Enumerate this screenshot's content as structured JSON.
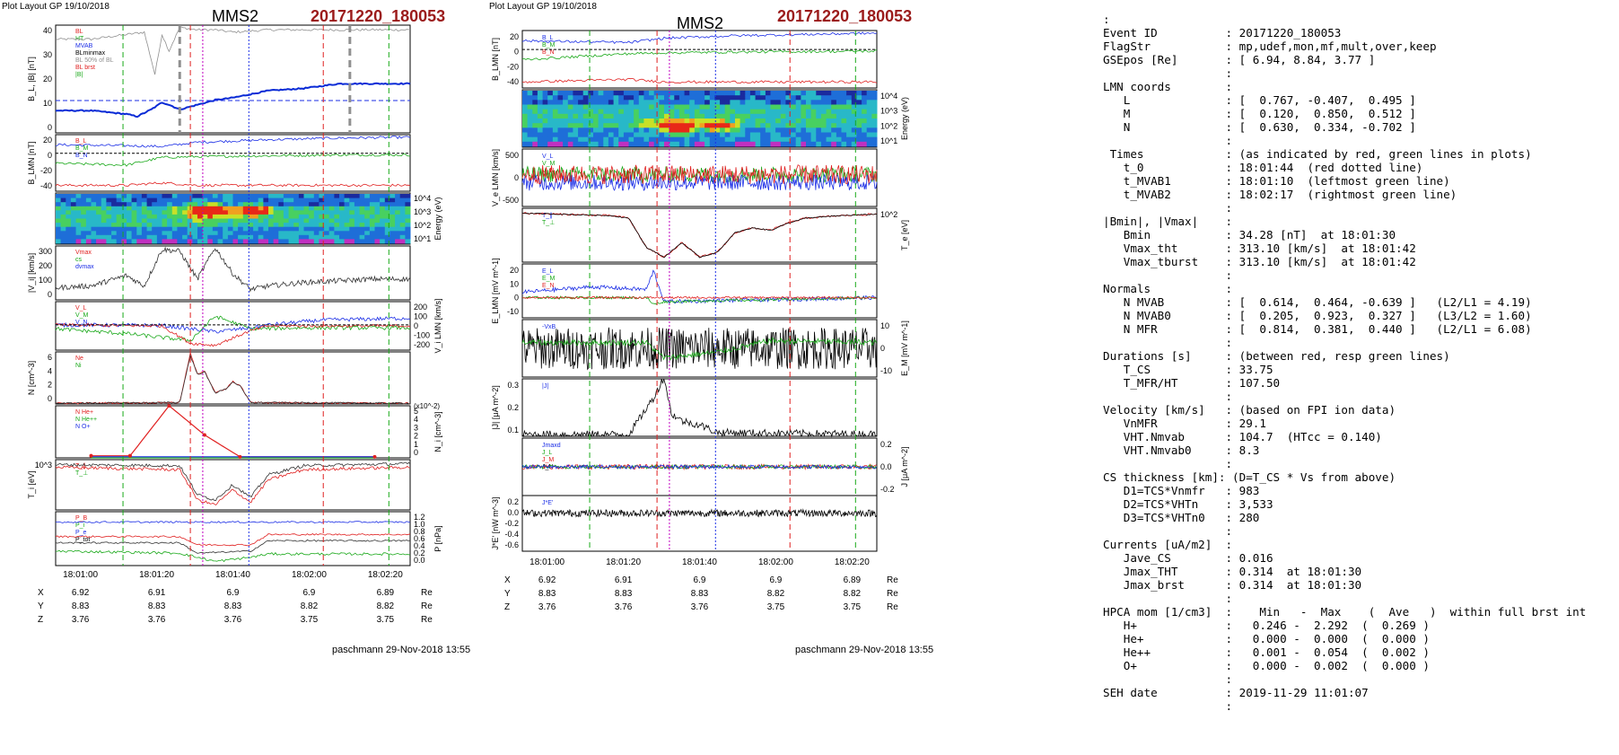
{
  "colors": {
    "red": "#e02020",
    "green": "#18a818",
    "blue": "#1b2ee6",
    "magenta": "#c000c0",
    "gray": "#909090",
    "black": "#000000",
    "thickBlue": "#0a2bd6",
    "cyan": "#00a0c0",
    "title_red": "#9b1b1b"
  },
  "left_plot": {
    "header": "Plot Layout GP 19/10/2018",
    "title": "MMS2",
    "event": "20171220_180053",
    "footer": "paschmann 29-Nov-2018 13:55",
    "time_ticks": [
      "18:01:00",
      "18:01:20",
      "18:01:40",
      "18:02:00",
      "18:02:20"
    ],
    "position_table": {
      "rows": [
        {
          "label": "X",
          "values": [
            "6.92",
            "6.91",
            "6.9",
            "6.9",
            "6.89"
          ],
          "unit": "Re"
        },
        {
          "label": "Y",
          "values": [
            "8.83",
            "8.83",
            "8.83",
            "8.82",
            "8.82"
          ],
          "unit": "Re"
        },
        {
          "label": "Z",
          "values": [
            "3.76",
            "3.76",
            "3.76",
            "3.75",
            "3.75"
          ],
          "unit": "Re"
        }
      ]
    },
    "panels": [
      {
        "ylabel": "B_L, |B| [nT]",
        "yticks": [
          "40",
          "30",
          "20",
          "10",
          "0"
        ],
        "legend": [
          "BL",
          "HT",
          "MVAB",
          "BLminmax",
          "BL 50% of BL",
          "BL brst",
          "|B|"
        ]
      },
      {
        "ylabel": "B_LMN [nT]",
        "yticks": [
          "20",
          "0",
          "-20",
          "-40"
        ],
        "legend": [
          "B_L",
          "B_M",
          "B_N"
        ]
      },
      {
        "ylabel": "Energy (eV)",
        "yticks": [
          "10^4",
          "10^3",
          "10^2",
          "10^1"
        ]
      },
      {
        "ylabel": "|V_i| [km/s]",
        "yticks": [
          "300",
          "200",
          "100",
          "0"
        ],
        "legend": [
          "Vmax",
          "cs",
          "dvmax"
        ]
      },
      {
        "ylabel": "V_i LMN [km/s]",
        "yticks": [
          "200",
          "100",
          "0",
          "-100",
          "-200"
        ],
        "legend": [
          "V_L",
          "V_M",
          "V_N"
        ]
      },
      {
        "ylabel": "N [cm^-3]",
        "yticks": [
          "6",
          "4",
          "2",
          "0"
        ],
        "legend": [
          "Ne",
          "Ni"
        ]
      },
      {
        "ylabel": "N_i [cm^-3]",
        "yticks": [
          "5",
          "4",
          "3",
          "2",
          "1",
          "0"
        ],
        "scale": "(x10^-2)",
        "legend": [
          "N He+",
          "N He++",
          "N O+"
        ]
      },
      {
        "ylabel": "T_i [eV]",
        "yticks": [
          "10^3"
        ],
        "legend": [
          "T_∥",
          "T_⊥"
        ]
      },
      {
        "ylabel": "P [nPa]",
        "yticks": [
          "1.2",
          "1.0",
          "0.8",
          "0.6",
          "0.4",
          "0.2",
          "0.0"
        ],
        "legend": [
          "P_B",
          "P_i",
          "P_e",
          "P_tot"
        ]
      }
    ]
  },
  "middle_plot": {
    "header": "Plot Layout GP 19/10/2018",
    "title": "MMS2",
    "event": "20171220_180053",
    "footer": "paschmann 29-Nov-2018 13:55",
    "time_ticks": [
      "18:01:00",
      "18:01:20",
      "18:01:40",
      "18:02:00",
      "18:02:20"
    ],
    "position_table": {
      "rows": [
        {
          "label": "X",
          "values": [
            "6.92",
            "6.91",
            "6.9",
            "6.9",
            "6.89"
          ],
          "unit": "Re"
        },
        {
          "label": "Y",
          "values": [
            "8.83",
            "8.83",
            "8.83",
            "8.82",
            "8.82"
          ],
          "unit": "Re"
        },
        {
          "label": "Z",
          "values": [
            "3.76",
            "3.76",
            "3.76",
            "3.75",
            "3.75"
          ],
          "unit": "Re"
        }
      ]
    },
    "panels": [
      {
        "ylabel": "B_LMN [nT]",
        "yticks": [
          "20",
          "0",
          "-20",
          "-40"
        ],
        "legend": [
          "B_L",
          "B_M",
          "B_N"
        ]
      },
      {
        "ylabel": "Energy (eV)",
        "yticks": [
          "10^4",
          "10^3",
          "10^2",
          "10^1"
        ]
      },
      {
        "ylabel": "V_e LMN [km/s]",
        "yticks": [
          "500",
          "0",
          "-500"
        ],
        "legend": [
          "V_L",
          "V_M",
          "V_N"
        ]
      },
      {
        "ylabel": "T_e [eV]",
        "yticks": [
          "10^2"
        ],
        "legend": [
          "T_∥",
          "T_⊥"
        ]
      },
      {
        "ylabel": "E_LMN [mV m^-1]",
        "yticks": [
          "20",
          "10",
          "0",
          "-10"
        ],
        "legend": [
          "E_L",
          "E_M",
          "E_N"
        ]
      },
      {
        "ylabel": "E_M [mV m^-1]",
        "yticks": [
          "10",
          "0",
          "-10"
        ],
        "legend": [
          "-VxB"
        ]
      },
      {
        "ylabel": "|J| [μA m^-2]",
        "yticks": [
          "0.3",
          "0.2",
          "0.1"
        ],
        "legend": [
          "|J|"
        ]
      },
      {
        "ylabel": "J [μA m^-2]",
        "yticks": [
          "0.2",
          "0.0",
          "-0.2"
        ],
        "legend": [
          "Jmaxd",
          "J_L",
          "J_M",
          "J_N"
        ]
      },
      {
        "ylabel": "J*E' [nW m^-3]",
        "yticks": [
          "0.2",
          "0.0",
          "-0.2",
          "-0.4",
          "-0.6"
        ],
        "legend": [
          "J*E'"
        ]
      }
    ]
  },
  "summary_lines": [
    ":",
    "Event ID          : 20171220_180053",
    "FlagStr           : mp,udef,mon,mf,mult,over,keep",
    "GSEpos [Re]       : [ 6.94, 8.84, 3.77 ]",
    "                  :",
    "LMN coords        :",
    "   L              : [  0.767, -0.407,  0.495 ]",
    "   M              : [  0.120,  0.850,  0.512 ]",
    "   N              : [  0.630,  0.334, -0.702 ]",
    "                  :",
    " Times            : (as indicated by red, green lines in plots)",
    "   t_0            : 18:01:44  (red dotted line)",
    "   t_MVAB1        : 18:01:10  (leftmost green line)",
    "   t_MVAB2        : 18:02:17  (rightmost green line)",
    "                  :",
    "|Bmin|, |Vmax|    :",
    "   Bmin           : 34.28 [nT]  at 18:01:30",
    "   Vmax_tht       : 313.10 [km/s]  at 18:01:42",
    "   Vmax_tburst    : 313.10 [km/s]  at 18:01:42",
    "                  :",
    "Normals           :",
    "   N MVAB         : [  0.614,  0.464, -0.639 ]   (L2/L1 = 4.19)",
    "   N MVAB0        : [  0.205,  0.923,  0.327 ]   (L3/L2 = 1.60)",
    "   N MFR          : [  0.814,  0.381,  0.440 ]   (L2/L1 = 6.08)",
    "                  :",
    "Durations [s]     : (between red, resp green lines)",
    "   T_CS           : 33.75",
    "   T_MFR/HT       : 107.50",
    "                  :",
    "Velocity [km/s]   : (based on FPI ion data)",
    "   VnMFR          : 29.1",
    "   VHT.Nmvab      : 104.7  (HTcc = 0.140)",
    "   VHT.Nmvab0     : 8.3",
    "                  :",
    "CS thickness [km]: (D=T_CS * Vs from above)",
    "   D1=TCS*Vnmfr   : 983",
    "   D2=TCS*VHTn    : 3,533",
    "   D3=TCS*VHTn0   : 280",
    "                  :",
    "Currents [uA/m2]  :",
    "   Jave_CS        : 0.016",
    "   Jmax_THT       : 0.314  at 18:01:30",
    "   Jmax_brst      : 0.314  at 18:01:30",
    "                  :",
    "HPCA mom [1/cm3]  :    Min   -  Max    (  Ave   )  within full brst int",
    "   H+             :   0.246 -  2.292  (  0.269 )",
    "   He+            :   0.000 -  0.000  (  0.000 )",
    "   He++           :   0.001 -  0.054  (  0.002 )",
    "   O+             :   0.000 -  0.002  (  0.000 )",
    "                  :",
    "SEH date          : 2019-11-29 11:01:07",
    "                  :"
  ],
  "chart_data": [
    {
      "type": "line",
      "title": "MMS2",
      "event": "20171220_180053",
      "x_axis": {
        "ticks": [
          "18:01:00",
          "18:01:20",
          "18:01:40",
          "18:02:00",
          "18:02:20"
        ]
      },
      "vertical_markers": [
        {
          "time": "18:01:10",
          "color": "green",
          "style": "dashed"
        },
        {
          "time": "18:01:25",
          "color": "red",
          "style": "dashed"
        },
        {
          "time": "18:01:30",
          "color": "magenta",
          "style": "dotted"
        },
        {
          "time": "18:01:44",
          "color": "blue",
          "style": "dotted"
        },
        {
          "time": "18:02:02",
          "color": "red",
          "style": "dashed"
        },
        {
          "time": "18:02:17",
          "color": "green",
          "style": "dashed"
        }
      ],
      "panels": [
        {
          "ylabel": "B_L, |B| [nT]",
          "ylim": [
            0,
            46
          ],
          "series": [
            {
              "name": "|B|",
              "x": [
                0,
                5,
                10,
                15,
                20,
                25,
                28,
                30,
                32,
                35,
                40,
                45,
                50,
                60,
                70,
                80,
                90,
                100
              ],
              "y": [
                40,
                40,
                40,
                41,
                42,
                43,
                25,
                42,
                35,
                45,
                44,
                44,
                43,
                44,
                44,
                44,
                44,
                44
              ]
            },
            {
              "name": "BL brst",
              "x": [
                0,
                10,
                20,
                23,
                27,
                30,
                32,
                35,
                40,
                45,
                50,
                60,
                70,
                80,
                90,
                100
              ],
              "y": [
                9.5,
                9.5,
                8,
                7,
                10,
                13,
                12,
                10,
                12,
                14,
                15,
                18,
                19,
                21,
                21,
                21
              ]
            }
          ]
        },
        {
          "ylabel": "B_LMN [nT]",
          "ylim": [
            -45,
            22
          ],
          "series": [
            {
              "name": "B_L",
              "x": [
                0,
                20,
                30,
                40,
                60,
                80,
                100
              ],
              "y": [
                10,
                9,
                8,
                13,
                16,
                18,
                19
              ]
            },
            {
              "name": "B_M",
              "x": [
                0,
                20,
                30,
                40,
                60,
                80,
                100
              ],
              "y": [
                -12,
                -14,
                -5,
                -4,
                -3,
                -2,
                -2
              ]
            },
            {
              "name": "B_N",
              "x": [
                0,
                20,
                30,
                40,
                60,
                80,
                100
              ],
              "y": [
                -38,
                -38,
                -35,
                -38,
                -38,
                -38,
                -38
              ]
            }
          ]
        },
        {
          "ylabel": "|V_i| [km/s]",
          "ylim": [
            0,
            310
          ],
          "series": [
            {
              "name": "|V_i|",
              "x": [
                0,
                10,
                20,
                25,
                30,
                35,
                40,
                45,
                50,
                55,
                60,
                70,
                80,
                90,
                100
              ],
              "y": [
                70,
                80,
                140,
                80,
                290,
                280,
                120,
                300,
                150,
                60,
                80,
                100,
                110,
                120,
                120
              ]
            }
          ]
        },
        {
          "ylabel": "N [cm^-3]",
          "ylim": [
            0,
            7
          ],
          "series": [
            {
              "name": "Ne",
              "x": [
                0,
                35,
                38,
                40,
                42,
                45,
                48,
                50,
                52,
                55,
                100
              ],
              "y": [
                0.1,
                0.2,
                6.8,
                4,
                4.5,
                1.5,
                2,
                3,
                2.5,
                0.2,
                0.1
              ]
            },
            {
              "name": "Ni",
              "x": [
                0,
                35,
                38,
                40,
                42,
                45,
                48,
                50,
                52,
                55,
                100
              ],
              "y": [
                0.1,
                0.2,
                6.5,
                4,
                4.3,
                1.5,
                2,
                3,
                2.4,
                0.2,
                0.1
              ]
            }
          ]
        },
        {
          "ylabel": "N_i [cm^-3]",
          "ylim": [
            0,
            5
          ],
          "scale": "(x10^-2)",
          "series": [
            {
              "name": "N He++",
              "x": [
                10,
                21,
                32,
                42,
                52,
                90
              ],
              "y": [
                0.2,
                0.2,
                5,
                2.2,
                0.1,
                0.1
              ]
            },
            {
              "name": "N He+",
              "x": [
                10,
                90
              ],
              "y": [
                0,
                0
              ]
            },
            {
              "name": "N O+",
              "x": [
                10,
                90
              ],
              "y": [
                0.1,
                0.1
              ]
            }
          ]
        }
      ]
    },
    {
      "type": "line",
      "title": "MMS2",
      "event": "20171220_180053",
      "x_axis": {
        "ticks": [
          "18:01:00",
          "18:01:20",
          "18:01:40",
          "18:02:00",
          "18:02:20"
        ]
      },
      "panels": [
        {
          "ylabel": "B_LMN [nT]",
          "ylim": [
            -45,
            22
          ],
          "series": [
            {
              "name": "B_L",
              "x": [
                0,
                30,
                40,
                60,
                100
              ],
              "y": [
                10,
                8,
                13,
                16,
                19
              ]
            },
            {
              "name": "B_M",
              "x": [
                0,
                30,
                40,
                60,
                100
              ],
              "y": [
                -12,
                -5,
                -4,
                -3,
                -2
              ]
            },
            {
              "name": "B_N",
              "x": [
                0,
                30,
                40,
                60,
                100
              ],
              "y": [
                -38,
                -35,
                -38,
                -38,
                -38
              ]
            }
          ]
        },
        {
          "ylabel": "T_e [eV]",
          "ylim": [
            30,
            140
          ],
          "series": [
            {
              "name": "T_e",
              "x": [
                0,
                25,
                30,
                35,
                40,
                45,
                50,
                55,
                60,
                65,
                70,
                75,
                80,
                90,
                100
              ],
              "y": [
                130,
                125,
                120,
                60,
                40,
                70,
                40,
                50,
                90,
                100,
                95,
                110,
                120,
                125,
                128
              ]
            }
          ]
        },
        {
          "ylabel": "|J| [μA m^-2]",
          "ylim": [
            0,
            0.3
          ],
          "series": [
            {
              "name": "|J|",
              "x": [
                0,
                30,
                37,
                40,
                42,
                45,
                50,
                55,
                100
              ],
              "y": [
                0.01,
                0.01,
                0.2,
                0.31,
                0.12,
                0.08,
                0.06,
                0.02,
                0.01
              ]
            }
          ]
        }
      ]
    }
  ]
}
